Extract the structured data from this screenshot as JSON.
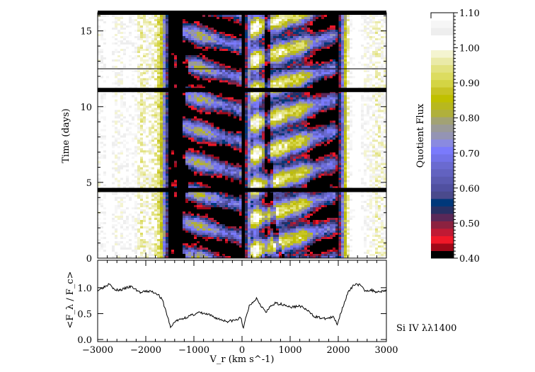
{
  "chart_data": [
    {
      "type": "heatmap",
      "xlabel": "V_r (km s^-1)",
      "ylabel": "Time (days)",
      "xlim": [
        -3000,
        3000
      ],
      "ylim": [
        0,
        16.2
      ],
      "x_ticks": [
        "-3000",
        "-2000",
        "-1000",
        "0",
        "1000",
        "2000",
        "3000"
      ],
      "y_ticks": [
        "0",
        "5",
        "10",
        "15"
      ],
      "data_gaps_days": [
        16.2,
        11.1,
        4.5
      ],
      "reference_lines": {
        "time_days": [
          12.5
        ],
        "velocity_kms": [
          0,
          2000
        ]
      },
      "colorbar": {
        "label": "Quotient Flux",
        "range": [
          0.4,
          1.1
        ],
        "ticks": [
          "0.40",
          "0.50",
          "0.60",
          "0.70",
          "0.80",
          "0.90",
          "1.00",
          "1.10"
        ],
        "colors": [
          "#000000",
          "#a00818",
          "#f01828",
          "#c01a34",
          "#8c2240",
          "#5a2858",
          "#283064",
          "#00387a",
          "#4a4a8c",
          "#5050a0",
          "#5a5ab0",
          "#6262c0",
          "#6a6ad0",
          "#7272e8",
          "#7a7afc",
          "#8a8ae0",
          "#9494b4",
          "#9a9a98",
          "#a2a274",
          "#b0b03c",
          "#b8b81e",
          "#c0c000",
          "#c8c424",
          "#d4d444",
          "#dcdc60",
          "#e2e280",
          "#eaeaa8",
          "#f4f4d0",
          "#ffffff",
          "#ffffff",
          "#eeeeee",
          "#f6f6f6",
          "#ffffff"
        ]
      }
    },
    {
      "type": "line",
      "xlabel": "V_r (km s^-1)",
      "ylabel": "<F_λ / F_c>",
      "xlim": [
        -3000,
        3000
      ],
      "ylim": [
        -0.04,
        1.53
      ],
      "y_ticks": [
        "0.0",
        "0.5",
        "1.0"
      ],
      "x": [
        -3000,
        -2900,
        -2800,
        -2750,
        -2650,
        -2500,
        -2400,
        -2300,
        -2200,
        -2100,
        -2000,
        -1900,
        -1800,
        -1750,
        -1650,
        -1550,
        -1480,
        -1400,
        -1300,
        -1100,
        -900,
        -700,
        -500,
        -300,
        -100,
        -20,
        30,
        60,
        150,
        300,
        400,
        500,
        600,
        700,
        900,
        1000,
        1200,
        1300,
        1500,
        1700,
        1900,
        1980,
        2100,
        2200,
        2350,
        2450,
        2550,
        2700,
        2800,
        3000
      ],
      "y": [
        0.95,
        1.0,
        1.05,
        1.1,
        0.95,
        0.96,
        1.0,
        1.02,
        0.96,
        0.9,
        0.93,
        0.93,
        0.9,
        0.88,
        0.75,
        0.45,
        0.22,
        0.35,
        0.38,
        0.45,
        0.52,
        0.48,
        0.4,
        0.35,
        0.38,
        0.43,
        0.2,
        0.35,
        0.65,
        0.8,
        0.65,
        0.52,
        0.65,
        0.7,
        0.67,
        0.62,
        0.65,
        0.6,
        0.45,
        0.4,
        0.43,
        0.3,
        0.65,
        0.9,
        1.08,
        1.05,
        0.95,
        0.95,
        0.92,
        0.95
      ]
    }
  ],
  "annotation": "Si IV λλ1400"
}
